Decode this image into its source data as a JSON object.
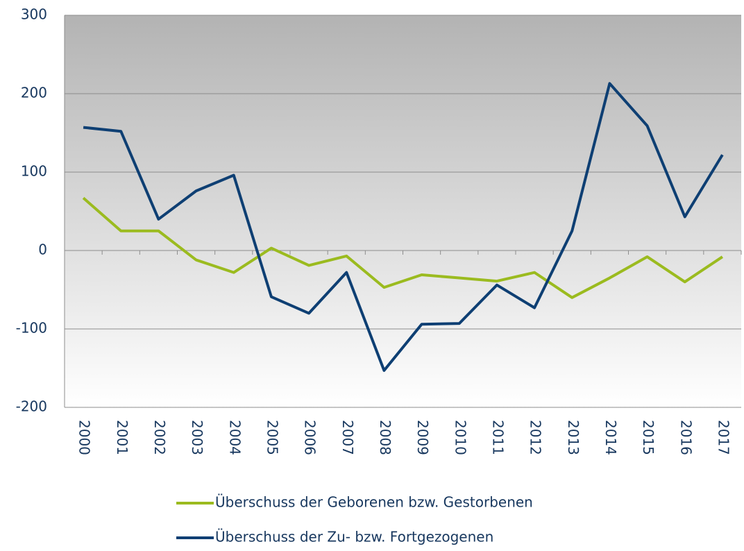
{
  "chart_data": {
    "type": "line",
    "categories": [
      "2000",
      "2001",
      "2002",
      "2003",
      "2004",
      "2005",
      "2006",
      "2007",
      "2008",
      "2009",
      "2010",
      "2011",
      "2012",
      "2013",
      "2014",
      "2015",
      "2016",
      "2017"
    ],
    "series": [
      {
        "name": "Überschuss der Geborenen bzw. Gestorbenen",
        "color": "#9bbb1f",
        "values": [
          67,
          25,
          25,
          -12,
          -28,
          3,
          -19,
          -7,
          -47,
          -31,
          -35,
          -39,
          -28,
          -60,
          -35,
          -8,
          -40,
          -8
        ]
      },
      {
        "name": "Überschuss der Zu- bzw. Fortgezogenen",
        "color": "#0e3f73",
        "values": [
          157,
          152,
          40,
          76,
          96,
          -59,
          -80,
          -28,
          -153,
          -94,
          -93,
          -44,
          -73,
          25,
          213,
          159,
          43,
          122
        ]
      }
    ],
    "ylim": [
      -200,
      300
    ],
    "yticks": [
      -200,
      -100,
      0,
      100,
      200,
      300
    ],
    "grid": true
  }
}
